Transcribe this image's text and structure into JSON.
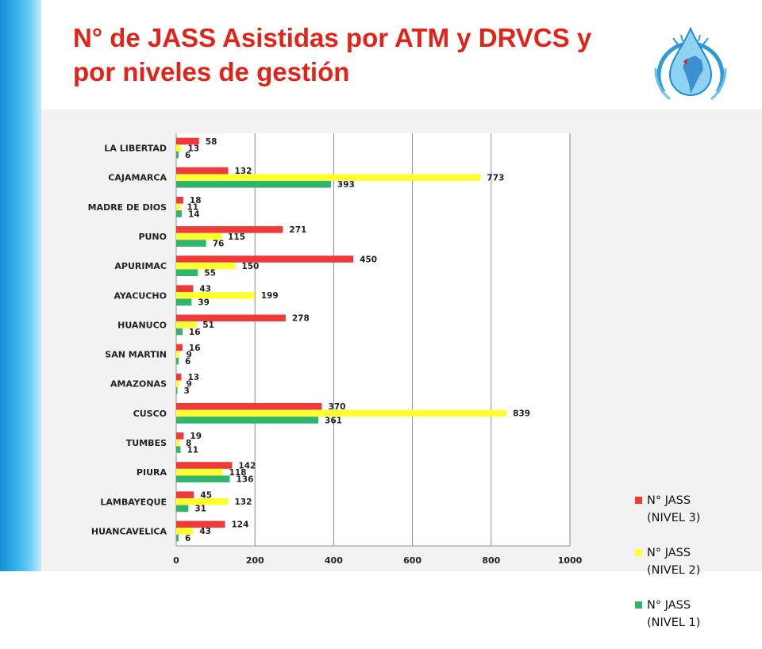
{
  "page": {
    "title": "N° de JASS Asistidas por ATM y DRVCS y por niveles de gestión"
  },
  "colors": {
    "title": "#e2231a",
    "nivel3": "#f03a3a",
    "nivel2": "#ffff33",
    "nivel1": "#2fb66c",
    "panel": "#f2f2f2"
  },
  "logo": {
    "icon": "water-drop-south-america-logo"
  },
  "chart_data": {
    "type": "bar",
    "orientation": "horizontal",
    "categories": [
      "LA LIBERTAD",
      "CAJAMARCA",
      "MADRE DE DIOS",
      "PUNO",
      "APURIMAC",
      "AYACUCHO",
      "HUANUCO",
      "SAN MARTIN",
      "AMAZONAS",
      "CUSCO",
      "TUMBES",
      "PIURA",
      "LAMBAYEQUE",
      "HUANCAVELICA"
    ],
    "series": [
      {
        "name": "N° JASS (NIVEL 3)",
        "color": "#f03a3a",
        "values": [
          58,
          132,
          18,
          271,
          450,
          43,
          278,
          16,
          13,
          370,
          19,
          142,
          45,
          124
        ]
      },
      {
        "name": "N° JASS (NIVEL 2)",
        "color": "#ffff33",
        "values": [
          13,
          773,
          11,
          115,
          150,
          199,
          51,
          9,
          9,
          839,
          8,
          118,
          132,
          43
        ]
      },
      {
        "name": "N° JASS (NIVEL 1)",
        "color": "#2fb66c",
        "values": [
          6,
          393,
          14,
          76,
          55,
          39,
          16,
          6,
          3,
          361,
          11,
          136,
          31,
          6
        ]
      }
    ],
    "xlim": [
      0,
      1000
    ],
    "xticks": [
      "0",
      "200",
      "400",
      "600",
      "800",
      "1000"
    ],
    "grid": true,
    "legend_position": "right",
    "data_labels": true
  }
}
